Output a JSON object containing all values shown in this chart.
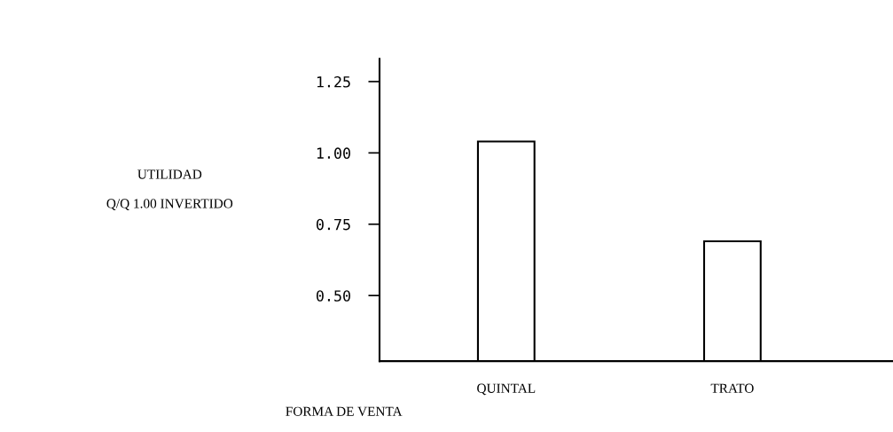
{
  "chart_data": {
    "type": "bar",
    "categories": [
      "QUINTAL",
      "TRATO"
    ],
    "values": [
      1.04,
      0.69
    ],
    "color": "#ffffff",
    "xlabel": "FORMA DE VENTA",
    "ylabel": "UTILIDAD\nQ/Q 1.00 INVERTIDO",
    "ylim": [
      0.27,
      1.33
    ],
    "yticks": [
      {
        "value": 0.5,
        "label": "0.50"
      },
      {
        "value": 0.75,
        "label": "0.75"
      },
      {
        "value": 1.0,
        "label": "1.00"
      },
      {
        "value": 1.25,
        "label": "1.25"
      }
    ],
    "grid": false,
    "legend": false
  }
}
